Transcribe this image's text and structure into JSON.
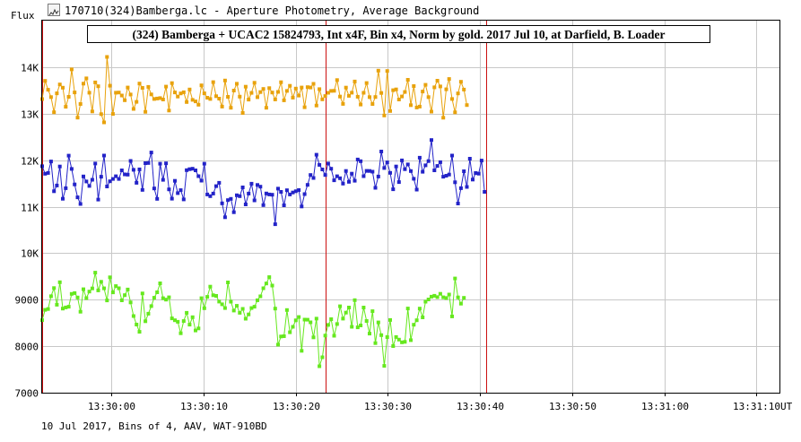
{
  "window": {
    "title": "170710(324)Bamberga.lc - Aperture Photometry, Average Background",
    "icon": "lightcurve-file-icon"
  },
  "chart_data": {
    "type": "line",
    "title": "(324) Bamberga + UCAC2 15824793,  Int x4F, Bin x4,  Norm by gold.  2017 Jul 10,  at Darfield,  B. Loader",
    "ylabel": "Flux",
    "xlabel": "UT",
    "footer": "10 Jul 2017, Bins of 4, AAV, WAT-910BD",
    "xlim": [
      "13:29:52.5",
      "13:31:12.5"
    ],
    "ylim": [
      7000,
      15000
    ],
    "x_ticks": [
      "13:30:00",
      "13:30:10",
      "13:30:20",
      "13:30:30",
      "13:30:40",
      "13:30:50",
      "13:31:00",
      "13:31:10"
    ],
    "y_ticks": [
      "7000",
      "8000",
      "9000",
      "10K",
      "11K",
      "12K",
      "13K",
      "14K"
    ],
    "grid": true,
    "markers": [
      "13:29:52.5",
      "13:30:23.3",
      "13:30:40.7"
    ],
    "sample_interval_s": 0.32,
    "start_time": "13:29:52.5",
    "colors": {
      "gold": "#e8a20c",
      "blue": "#2323c8",
      "green": "#66e81e",
      "marker": "#cc1111",
      "grid": "#c8c8c8"
    },
    "series": [
      {
        "color": "gold",
        "values": [
          13314,
          13705,
          13514,
          13355,
          13029,
          13437,
          13627,
          13559,
          13147,
          13362,
          13951,
          13456,
          12915,
          13208,
          13645,
          13759,
          13450,
          13048,
          13672,
          13588,
          12990,
          12812,
          14220,
          13601,
          12993,
          13451,
          13454,
          13390,
          13289,
          13562,
          13412,
          13102,
          13254,
          13646,
          13554,
          13040,
          13576,
          13414,
          13316,
          13324,
          13334,
          13303,
          13582,
          13067,
          13657,
          13455,
          13368,
          13434,
          13459,
          13250,
          13520,
          13296,
          13263,
          13191,
          13609,
          13436,
          13342,
          13315,
          13678,
          13375,
          13322,
          13152,
          13712,
          13362,
          13126,
          13496,
          13642,
          13366,
          13015,
          13580,
          13301,
          13447,
          13664,
          13353,
          13464,
          13531,
          13127,
          13549,
          13454,
          13306,
          13467,
          13676,
          13287,
          13488,
          13599,
          13345,
          13539,
          13388,
          13562,
          13137,
          13570,
          13562,
          13641,
          13175,
          13527,
          13307,
          13379,
          13449,
          13488,
          13491,
          13721,
          13367,
          13210,
          13560,
          13382,
          13451,
          13692,
          13364,
          13196,
          13449,
          13659,
          13356,
          13208,
          13358,
          13924,
          13445,
          12961,
          13916,
          13057,
          13504,
          13522,
          13303,
          13369,
          13466,
          13727,
          13183,
          13593,
          13132,
          13151,
          13476,
          13619,
          13356,
          13043,
          13565,
          13708,
          13585,
          12913,
          13524,
          13745,
          13316,
          13028,
          13435,
          13686,
          13517,
          13184
        ]
      },
      {
        "color": "blue",
        "values": [
          11870,
          11707,
          11725,
          11972,
          11332,
          11454,
          11864,
          11169,
          11397,
          12097,
          11812,
          11479,
          11201,
          11058,
          11649,
          11541,
          11446,
          11578,
          11927,
          11153,
          11644,
          12098,
          11434,
          11546,
          11595,
          11653,
          11596,
          11781,
          11694,
          11688,
          11983,
          11793,
          11512,
          11802,
          11361,
          11934,
          11938,
          12165,
          11391,
          11168,
          11924,
          11576,
          11931,
          11373,
          11172,
          11555,
          11292,
          11355,
          11156,
          11785,
          11806,
          11816,
          11781,
          11655,
          11559,
          11923,
          11262,
          11225,
          11282,
          11442,
          11513,
          11072,
          10772,
          11141,
          11167,
          10881,
          11244,
          11225,
          11414,
          11048,
          11282,
          11493,
          11135,
          11467,
          11430,
          11032,
          11283,
          11262,
          11257,
          10623,
          11388,
          11318,
          11028,
          11353,
          11263,
          11305,
          11331,
          11357,
          11003,
          11270,
          11469,
          11680,
          11616,
          12117,
          11898,
          11800,
          11680,
          11927,
          11815,
          11567,
          11654,
          11612,
          11496,
          11767,
          11534,
          11709,
          11557,
          12014,
          11978,
          11656,
          11770,
          11767,
          11752,
          11405,
          11648,
          12186,
          11830,
          11953,
          11727,
          11374,
          11864,
          11528,
          11994,
          11806,
          11908,
          11765,
          11600,
          11367,
          12052,
          11749,
          11889,
          11980,
          12432,
          11781,
          11875,
          11956,
          11644,
          11666,
          11690,
          12098,
          11525,
          11067,
          11397,
          11762,
          11425,
          12032,
          11583,
          11722,
          11710,
          11990,
          11319
        ]
      },
      {
        "color": "green",
        "values": [
          8560,
          8782,
          8798,
          9075,
          9249,
          8892,
          9375,
          8808,
          8834,
          8848,
          9125,
          9142,
          9047,
          8741,
          9225,
          9034,
          9175,
          9242,
          9582,
          9199,
          9385,
          9243,
          8983,
          9481,
          9157,
          9292,
          9246,
          8985,
          9097,
          9218,
          8942,
          8649,
          8465,
          8308,
          9134,
          8536,
          8699,
          8862,
          9041,
          9159,
          9352,
          9031,
          9001,
          9052,
          8599,
          8558,
          8524,
          8279,
          8540,
          8718,
          8464,
          8624,
          8338,
          8383,
          9031,
          8816,
          9061,
          9281,
          9095,
          9082,
          8959,
          8901,
          8819,
          9372,
          8956,
          8766,
          8868,
          8717,
          8803,
          8591,
          8682,
          8819,
          8848,
          8987,
          9073,
          9245,
          9347,
          9485,
          9303,
          8809,
          8033,
          8208,
          8215,
          8778,
          8299,
          8417,
          8556,
          8627,
          7901,
          8571,
          8569,
          8514,
          8190,
          8592,
          7569,
          7761,
          8228,
          8457,
          8581,
          8224,
          8477,
          8858,
          8593,
          8721,
          8831,
          8417,
          8989,
          8406,
          8445,
          8832,
          8543,
          8271,
          8752,
          8066,
          8512,
          8237,
          7576,
          8196,
          8563,
          8002,
          8197,
          8142,
          8084,
          8093,
          8811,
          8130,
          8462,
          8558,
          8809,
          8619,
          8956,
          9005,
          9065,
          9084,
          9054,
          9127,
          9052,
          9036,
          9111,
          8640,
          9456,
          9050,
          8914,
          9040
        ]
      }
    ]
  }
}
